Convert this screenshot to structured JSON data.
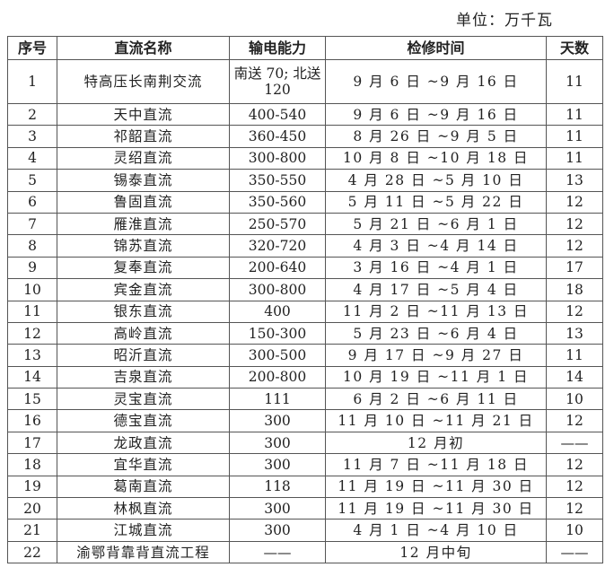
{
  "unit_label": "单位：万千瓦",
  "headers": [
    "序号",
    "直流名称",
    "输电能力",
    "检修时间",
    "天数"
  ],
  "rows": [
    {
      "no": "1",
      "name": "特高压长南荆交流",
      "capacity": "南送 70; 北送 120",
      "period": "9 月 6 日 ~9 月 16 日",
      "days": "11"
    },
    {
      "no": "2",
      "name": "天中直流",
      "capacity": "400-540",
      "period": "9 月 6 日 ~9 月 16 日",
      "days": "11"
    },
    {
      "no": "3",
      "name": "祁韶直流",
      "capacity": "360-450",
      "period": "8 月 26 日 ~9 月 5 日",
      "days": "11"
    },
    {
      "no": "4",
      "name": "灵绍直流",
      "capacity": "300-800",
      "period": "10 月 8 日 ~10 月 18 日",
      "days": "11"
    },
    {
      "no": "5",
      "name": "锡泰直流",
      "capacity": "350-550",
      "period": "4 月 28 日 ~5 月 10 日",
      "days": "13"
    },
    {
      "no": "6",
      "name": "鲁固直流",
      "capacity": "350-560",
      "period": "5 月 11 日 ~5 月 22 日",
      "days": "12"
    },
    {
      "no": "7",
      "name": "雁淮直流",
      "capacity": "250-570",
      "period": "5 月 21 日 ~6 月 1 日",
      "days": "12"
    },
    {
      "no": "8",
      "name": "锦苏直流",
      "capacity": "320-720",
      "period": "4 月 3 日 ~4 月 14 日",
      "days": "12"
    },
    {
      "no": "9",
      "name": "复奉直流",
      "capacity": "200-640",
      "period": "3 月 16 日 ~4 月 1 日",
      "days": "17"
    },
    {
      "no": "10",
      "name": "宾金直流",
      "capacity": "300-800",
      "period": "4 月 17 日 ~5 月 4 日",
      "days": "18"
    },
    {
      "no": "11",
      "name": "银东直流",
      "capacity": "400",
      "period": "11 月 2 日 ~11 月 13 日",
      "days": "12"
    },
    {
      "no": "12",
      "name": "高岭直流",
      "capacity": "150-300",
      "period": "5 月 23 日 ~6 月 4 日",
      "days": "13"
    },
    {
      "no": "13",
      "name": "昭沂直流",
      "capacity": "300-500",
      "period": "9 月 17 日 ~9 月 27 日",
      "days": "11"
    },
    {
      "no": "14",
      "name": "吉泉直流",
      "capacity": "200-800",
      "period": "10 月 19 日 ~11 月 1 日",
      "days": "14"
    },
    {
      "no": "15",
      "name": "灵宝直流",
      "capacity": "111",
      "period": "6 月 2 日 ~6 月 11 日",
      "days": "10"
    },
    {
      "no": "16",
      "name": "德宝直流",
      "capacity": "300",
      "period": "11 月 10 日 ~11 月 21 日",
      "days": "12"
    },
    {
      "no": "17",
      "name": "龙政直流",
      "capacity": "300",
      "period": "12 月初",
      "days": "——"
    },
    {
      "no": "18",
      "name": "宜华直流",
      "capacity": "300",
      "period": "11 月 7 日 ~11 月 18 日",
      "days": "12"
    },
    {
      "no": "19",
      "name": "葛南直流",
      "capacity": "118",
      "period": "11 月 19 日 ~11 月 30 日",
      "days": "12"
    },
    {
      "no": "20",
      "name": "林枫直流",
      "capacity": "300",
      "period": "11 月 19 日 ~11 月 30 日",
      "days": "12"
    },
    {
      "no": "21",
      "name": "江城直流",
      "capacity": "300",
      "period": "4 月 1 日 ~4 月 10 日",
      "days": "10"
    },
    {
      "no": "22",
      "name": "渝鄂背靠背直流工程",
      "capacity": "——",
      "period": "12 月中旬",
      "days": "——"
    }
  ]
}
